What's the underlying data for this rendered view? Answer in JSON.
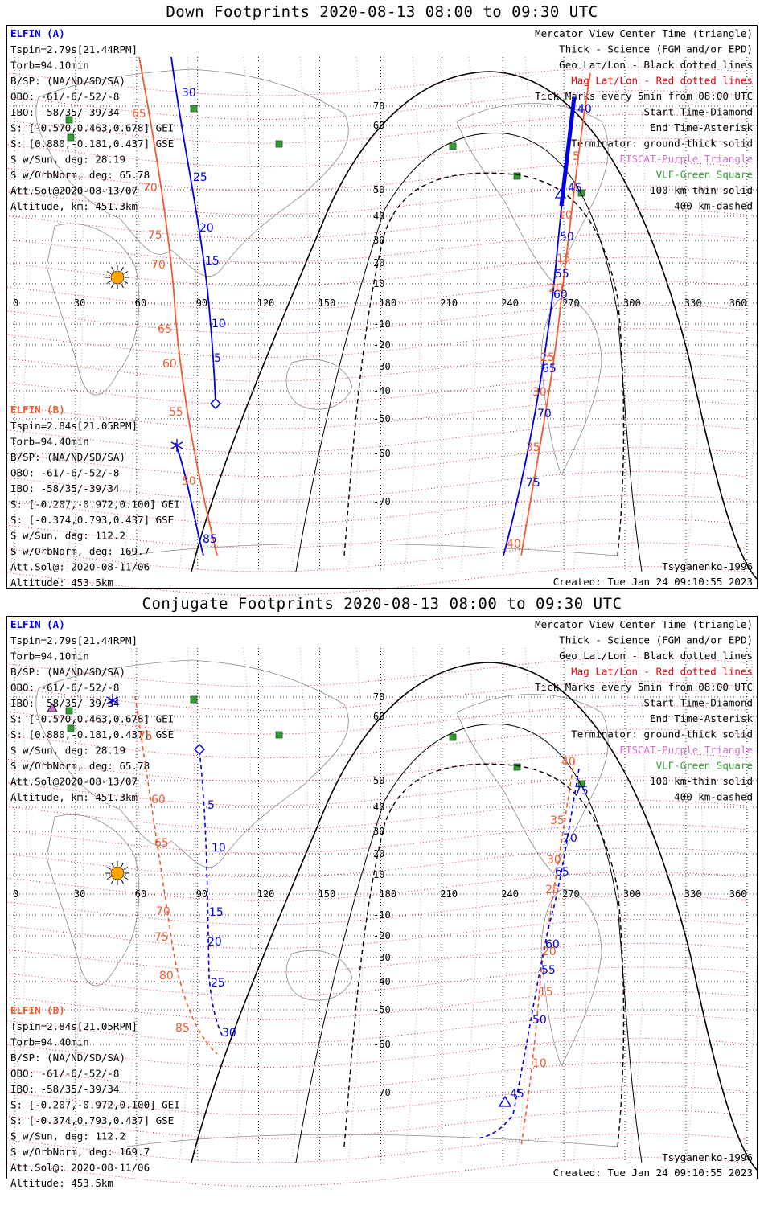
{
  "panels": [
    {
      "id": "down",
      "title": "Down Footprints 2020-08-13 08:00 to 09:30 UTC",
      "footer_left": "",
      "footer_right_1": "Tsyganenko-1996",
      "footer_right_2": "Created: Tue Jan 24 09:10:55 2023"
    },
    {
      "id": "conj",
      "title": "Conjugate Footprints 2020-08-13 08:00 to 09:30 UTC",
      "footer_right_1": "Tsyganenko-1996",
      "footer_right_2": "Created: Tue Jan 24 09:10:55 2023"
    }
  ],
  "elfin_a": {
    "header": "ELFIN (A)",
    "lines": [
      "Tspin=2.79s[21.44RPM]",
      "Torb=94.10min",
      "B/SP: (NA/ND/SD/SA)",
      "OBO: -61/-6/-52/-8",
      "IBO: -58/35/-39/34",
      "S: [-0.570,0.463,0.678] GEI",
      "S: [0.880,-0.181,0.437] GSE",
      "S w/Sun, deg: 28.19",
      "S w/OrbNorm, deg: 65.78",
      "Att.Sol@2020-08-13/07",
      "Altitude, km: 451.3km"
    ]
  },
  "elfin_b": {
    "header": "ELFIN (B)",
    "lines": [
      "Tspin=2.84s[21.05RPM]",
      "Torb=94.40min",
      "B/SP: (NA/ND/SD/SA)",
      "OBO: -61/-6/-52/-8",
      "IBO: -58/35/-39/34",
      "S: [-0.207,-0.972,0.100] GEI",
      "S: [-0.374,0.793,0.437] GSE",
      "S w/Sun, deg: 112.2",
      "S w/OrbNorm, deg: 169.7",
      "Att.Sol@: 2020-08-11/06",
      "Altitude: 453.5km"
    ]
  },
  "legend": [
    {
      "text": "Mercator View Center Time (triangle)",
      "color": "#000000"
    },
    {
      "text": "Thick - Science (FGM and/or EPD)",
      "color": "#000000"
    },
    {
      "text": "Geo Lat/Lon - Black dotted lines",
      "color": "#000000"
    },
    {
      "text": "Mag Lat/Lon - Red dotted lines",
      "color": "#e8000b"
    },
    {
      "text": "Tick Marks every 5min from 08:00 UTC",
      "color": "#000000"
    },
    {
      "text": "Start Time-Diamond",
      "color": "#000000"
    },
    {
      "text": "End Time-Asterisk",
      "color": "#000000"
    },
    {
      "text": "Terminator: ground-thick solid",
      "color": "#000000"
    },
    {
      "text": "EISCAT-Purple Triangle",
      "color": "#d070d0"
    },
    {
      "text": "VLF-Green Square",
      "color": "#3a9a3a"
    },
    {
      "text": "100 km-thin solid",
      "color": "#000000"
    },
    {
      "text": "400 km-dashed",
      "color": "#000000"
    }
  ],
  "lon_ticks": [
    "0",
    "30",
    "60",
    "90",
    "120",
    "150",
    "180",
    "210",
    "240",
    "270",
    "300",
    "330",
    "360"
  ],
  "lat_ticks": [
    "70",
    "60",
    "50",
    "40",
    "30",
    "20",
    "10",
    "-10",
    "-20",
    "-30",
    "-40",
    "-50",
    "-60",
    "-70"
  ],
  "down_labels": {
    "a_times": [
      "30",
      "25",
      "20",
      "15",
      "10",
      "5",
      "40",
      "45",
      "50",
      "55",
      "60",
      "65",
      "70",
      "75"
    ],
    "b_times": [
      "85"
    ],
    "mag_west": [
      "65",
      "70",
      "75",
      "70",
      "65",
      "60",
      "55",
      "50"
    ],
    "mag_east": [
      "5",
      "10",
      "15",
      "20",
      "25",
      "30",
      "35",
      "40"
    ]
  },
  "conj_labels": {
    "a_times": [
      "5",
      "10",
      "15",
      "20",
      "25",
      "30",
      "75",
      "70",
      "65",
      "60",
      "55",
      "50",
      "45"
    ],
    "mag_west": [
      "75",
      "60",
      "65",
      "70",
      "75",
      "80",
      "85"
    ],
    "mag_east": [
      "40",
      "35",
      "30",
      "25",
      "20",
      "15",
      "10"
    ]
  },
  "colors": {
    "elfin_a": "#0000e0",
    "elfin_b": "#f05a30",
    "mag_grid": "#e8000b",
    "eiscat": "#d070d0",
    "vlf": "#3a9a3a",
    "sun": "#ffa500"
  }
}
